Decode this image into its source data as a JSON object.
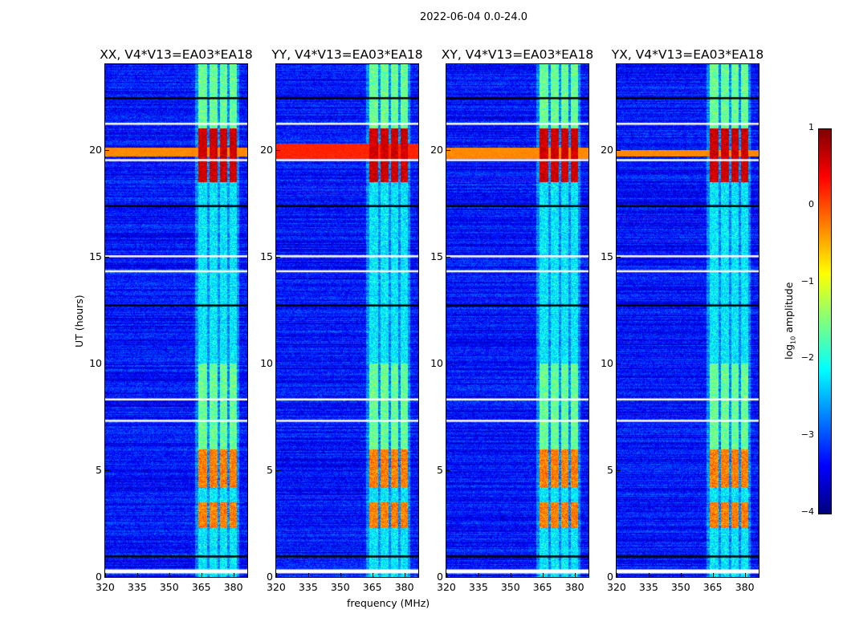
{
  "chart_data": {
    "type": "heatmap",
    "title": "2022-06-04 0.0-24.0",
    "xlabel": "frequency (MHz)",
    "ylabel": "UT (hours)",
    "xlim": [
      320,
      386.5
    ],
    "ylim": [
      0,
      24
    ],
    "xticks": [
      "320",
      "335",
      "350",
      "365",
      "380"
    ],
    "yticks": [
      "0",
      "5",
      "10",
      "15",
      "20"
    ],
    "panels": [
      {
        "title": "XX, V4*V13=EA03*EA18",
        "broadband_burst_hours": [
          19.7,
          20.1
        ]
      },
      {
        "title": "YY, V4*V13=EA03*EA18",
        "broadband_burst_hours": [
          19.6,
          20.3
        ]
      },
      {
        "title": "XY, V4*V13=EA03*EA18",
        "broadband_burst_hours": [
          19.6,
          20.1
        ]
      },
      {
        "title": "YX, V4*V13=EA03*EA18",
        "broadband_burst_hours": [
          19.7,
          20.0
        ]
      }
    ],
    "rfi_channels_mhz": [
      [
        363.5,
        367.5
      ],
      [
        368.5,
        372.5
      ],
      [
        373.5,
        377
      ],
      [
        378,
        381.5
      ]
    ],
    "strong_rfi_hours": [
      [
        18.5,
        21.0
      ],
      [
        4.2,
        6.0
      ],
      [
        2.3,
        3.5
      ]
    ],
    "flagged_hours": [
      0.3,
      0.95,
      7.3,
      8.3,
      12.7,
      14.3,
      15.0,
      17.35,
      19.5,
      21.2,
      22.4
    ],
    "colorbar": {
      "label": "log10 amplitude",
      "label_main": "log",
      "label_sub": "10",
      "label_rest": " amplitude",
      "range": [
        -4,
        1
      ],
      "ticks": [
        "1",
        "0",
        "−1",
        "−2",
        "−3",
        "−4"
      ],
      "colormap": "jet"
    }
  }
}
